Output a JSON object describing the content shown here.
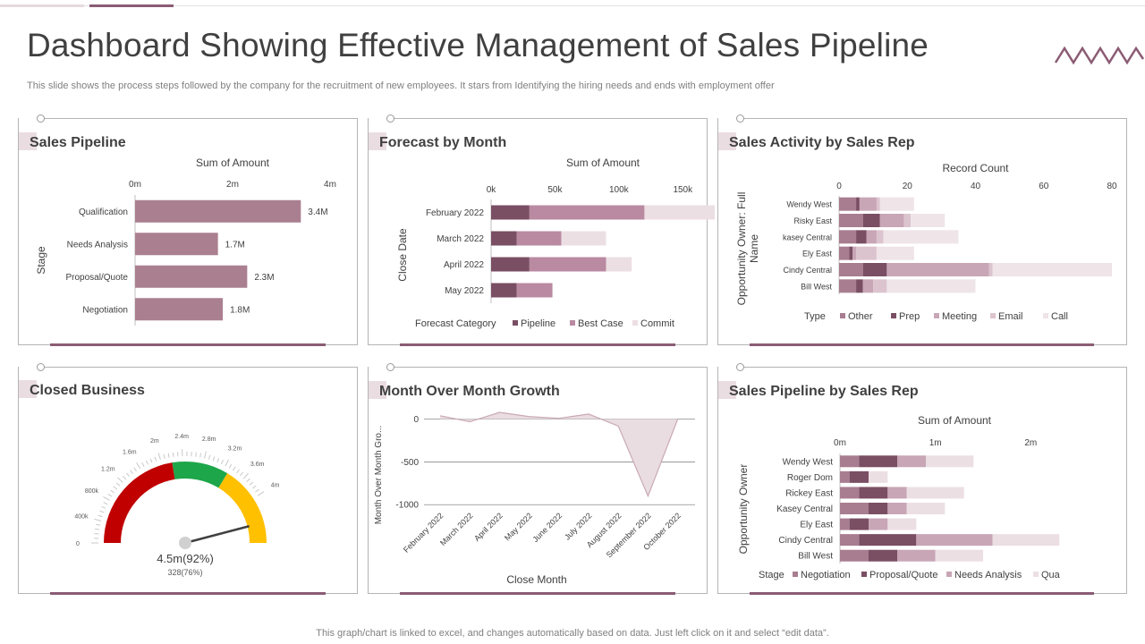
{
  "slide": {
    "title": "Dashboard Showing Effective Management of Sales Pipeline",
    "subtitle": "This slide shows the process steps followed by the company for the recruitment of new employees. It stars from Identifying the hiring needs and ends with employment offer",
    "footer": "This graph/chart is linked to excel, and changes automatically based on data. Just left click on it and select “edit data”.",
    "accent_color": "#8b5c74"
  },
  "panels": {
    "sales_pipeline": "Sales Pipeline",
    "forecast_by_month": "Forecast by Month",
    "sales_activity": "Sales Activity by Sales Rep",
    "closed_business": "Closed Business",
    "mom_growth": "Month Over Month Growth",
    "pipeline_by_rep": "Sales Pipeline by Sales Rep"
  },
  "chart_data": [
    {
      "id": "sales_pipeline",
      "type": "bar",
      "orientation": "horizontal",
      "title": "Sum of Amount",
      "ylabel": "Stage",
      "categories": [
        "Qualification",
        "Needs Analysis",
        "Proposal/Quote",
        "Negotiation"
      ],
      "values": [
        3.4,
        1.7,
        2.3,
        1.8
      ],
      "data_labels": [
        "3.4M",
        "1.7M",
        "2.3M",
        "1.8M"
      ],
      "xlim": [
        0,
        4
      ],
      "xticks": [
        0,
        2,
        4
      ],
      "xtick_labels": [
        "0m",
        "2m",
        "4m"
      ],
      "bar_color": "#aa7f90"
    },
    {
      "id": "forecast_by_month",
      "type": "bar",
      "orientation": "horizontal",
      "stacked": true,
      "title": "Sum of Amount",
      "ylabel": "Close Date",
      "categories": [
        "February 2022",
        "March 2022",
        "April 2022",
        "May 2022"
      ],
      "xlim": [
        0,
        175000
      ],
      "xticks": [
        0,
        50000,
        100000,
        150000
      ],
      "xtick_labels": [
        "0k",
        "50k",
        "100k",
        "150k"
      ],
      "legend_title": "Forecast Category",
      "legend_position": "bottom",
      "series": [
        {
          "name": "Pipeline",
          "color": "#7a4e63",
          "values": [
            30000,
            20000,
            30000,
            20000
          ]
        },
        {
          "name": "Best Case",
          "color": "#b98aa1",
          "values": [
            90000,
            35000,
            60000,
            28000
          ]
        },
        {
          "name": "Commit",
          "color": "#ecdfe4",
          "values": [
            55000,
            35000,
            20000,
            0
          ]
        }
      ]
    },
    {
      "id": "sales_activity",
      "type": "bar",
      "orientation": "horizontal",
      "stacked": true,
      "title": "Record Count",
      "ylabel": "Opportunity Owner: Full Name",
      "categories": [
        "Wendy West",
        "Risky East",
        "kasey Central",
        "Ely East",
        "Cindy Central",
        "Bill West"
      ],
      "xlim": [
        0,
        80
      ],
      "xticks": [
        0,
        20,
        40,
        60,
        80
      ],
      "xtick_labels": [
        "0",
        "20",
        "40",
        "60",
        "80"
      ],
      "legend_title": "Type",
      "legend_position": "bottom",
      "series": [
        {
          "name": "Other",
          "color": "#a87d90",
          "values": [
            5,
            7,
            5,
            3,
            7,
            5
          ]
        },
        {
          "name": "Prep",
          "color": "#7a4e63",
          "values": [
            1,
            5,
            3,
            1,
            7,
            2
          ]
        },
        {
          "name": "Meeting",
          "color": "#c8a6b6",
          "values": [
            5,
            7,
            3,
            1,
            30,
            3
          ]
        },
        {
          "name": "Email",
          "color": "#dcc4ce",
          "values": [
            1,
            2,
            2,
            6,
            1,
            4
          ]
        },
        {
          "name": "Call",
          "color": "#efe4e8",
          "values": [
            10,
            10,
            22,
            11,
            35,
            26
          ]
        }
      ]
    },
    {
      "id": "closed_business",
      "type": "gauge",
      "value": 4.5,
      "max": 4.9,
      "value_label": "4.5m(92%)",
      "sub_label": "328(76%)",
      "tick_labels": [
        "0",
        "400k",
        "800k",
        "1.2m",
        "1.6m",
        "2m",
        "2.4m",
        "2.8m",
        "3.2m",
        "3.6m",
        "4m"
      ],
      "bands": [
        {
          "from": 0,
          "to": 2.2,
          "color": "#c00000"
        },
        {
          "from": 2.2,
          "to": 3.3,
          "color": "#1ea64a"
        },
        {
          "from": 3.3,
          "to": 4.9,
          "color": "#ffc000"
        }
      ]
    },
    {
      "id": "mom_growth",
      "type": "area",
      "xlabel": "Close Month",
      "ylabel": "Month Over Month Gro...",
      "categories": [
        "February 2022",
        "March 2022",
        "April 2022",
        "May 2022",
        "June 2022",
        "July 2022",
        "August 2022",
        "September 2022",
        "October 2022"
      ],
      "values": [
        40,
        -30,
        80,
        30,
        10,
        60,
        -80,
        -900,
        0
      ],
      "ylim": [
        -1050,
        80
      ],
      "yticks": [
        0,
        -500,
        -1000
      ],
      "ytick_labels": [
        "0",
        "-500",
        "-1000"
      ],
      "grid": true,
      "fill_color": "#eadde2",
      "line_color": "#c9a9b7"
    },
    {
      "id": "pipeline_by_rep",
      "type": "bar",
      "orientation": "horizontal",
      "stacked": true,
      "title": "Sum of Amount",
      "ylabel": "Opportunity Owner",
      "categories": [
        "Wendy West",
        "Roger Dom",
        "Rickey East",
        "Kasey Central",
        "Ely East",
        "Cindy Central",
        "Bill West"
      ],
      "xlim": [
        0,
        2.4
      ],
      "xticks": [
        0,
        1,
        2
      ],
      "xtick_labels": [
        "0m",
        "1m",
        "2m"
      ],
      "legend_title": "Stage",
      "legend_position": "bottom",
      "series": [
        {
          "name": "Negotiation",
          "color": "#a87d90",
          "values": [
            0.2,
            0.1,
            0.2,
            0.3,
            0.1,
            0.2,
            0.3
          ]
        },
        {
          "name": "Proposal/Quote",
          "color": "#7a4e63",
          "values": [
            0.4,
            0.2,
            0.3,
            0.2,
            0.2,
            0.6,
            0.3
          ]
        },
        {
          "name": "Needs Analysis",
          "color": "#c8a6b6",
          "values": [
            0.3,
            0,
            0.2,
            0.2,
            0.2,
            0.8,
            0.4
          ]
        },
        {
          "name": "Qua",
          "color": "#ecdfe4",
          "values": [
            0.5,
            0.2,
            0.6,
            0.4,
            0.3,
            0.7,
            0.5
          ]
        }
      ]
    }
  ]
}
